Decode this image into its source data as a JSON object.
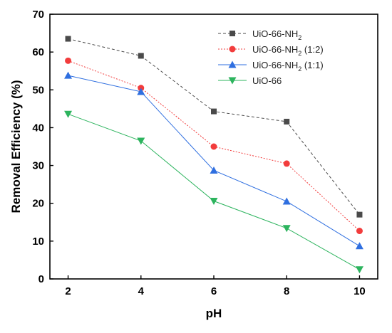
{
  "chart_data": {
    "type": "line",
    "xlabel": "pH",
    "ylabel": "Removal Efficiency (%)",
    "x": [
      2,
      4,
      6,
      8,
      10
    ],
    "xlim": [
      1.5,
      10.5
    ],
    "ylim": [
      0,
      70
    ],
    "xticks": [
      2,
      4,
      6,
      8,
      10
    ],
    "yticks": [
      0,
      10,
      20,
      30,
      40,
      50,
      60,
      70
    ],
    "grid": false,
    "legend_position": "top-right",
    "series": [
      {
        "name": "UiO-66-NH",
        "subscript": "2",
        "suffix": "",
        "marker": "square",
        "color": "#4a4a4a",
        "line_style": "dashed",
        "values": [
          63.5,
          59,
          44.3,
          41.6,
          17
        ]
      },
      {
        "name": "UiO-66-NH",
        "subscript": "2",
        "suffix": " (1:2)",
        "marker": "circle",
        "color": "#f23c3c",
        "line_style": "dotted",
        "values": [
          57.7,
          50.5,
          35,
          30.5,
          12.7
        ]
      },
      {
        "name": "UiO-66-NH",
        "subscript": "2",
        "suffix": " (1:1)",
        "marker": "triangle-up",
        "color": "#2f6fe0",
        "line_style": "solid",
        "values": [
          53.8,
          49.5,
          28.7,
          20.5,
          8.7
        ]
      },
      {
        "name": "UiO-66",
        "subscript": "",
        "suffix": "",
        "marker": "triangle-down",
        "color": "#2db45e",
        "line_style": "solid",
        "values": [
          43.6,
          36.5,
          20.6,
          13.4,
          2.5
        ]
      }
    ]
  }
}
